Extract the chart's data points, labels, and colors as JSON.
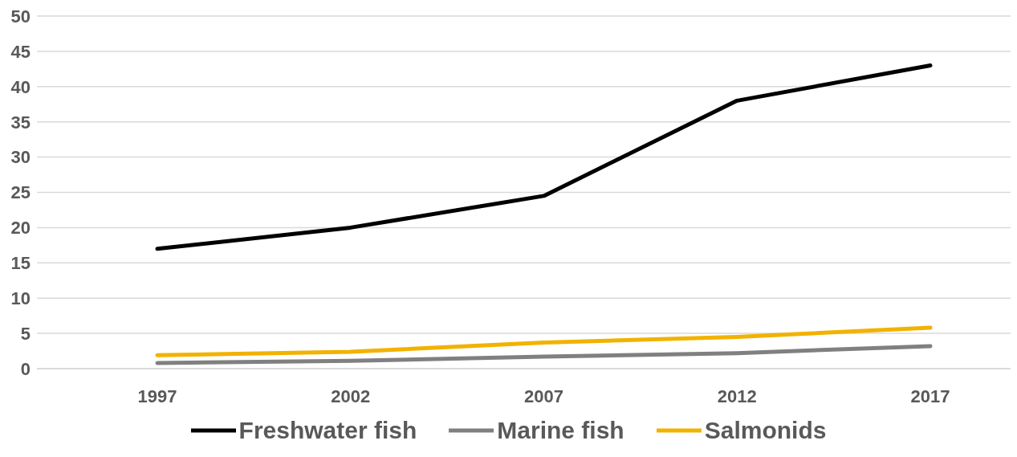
{
  "chart_data": {
    "type": "line",
    "categories": [
      "1997",
      "2002",
      "2007",
      "2012",
      "2017"
    ],
    "series": [
      {
        "name": "Freshwater fish",
        "color": "#000000",
        "values": [
          17,
          20,
          24.5,
          38,
          43
        ]
      },
      {
        "name": "Marine fish",
        "color": "#808080",
        "values": [
          0.8,
          1.1,
          1.7,
          2.2,
          3.2
        ]
      },
      {
        "name": "Salmonids",
        "color": "#f2b200",
        "values": [
          1.9,
          2.4,
          3.7,
          4.5,
          5.8
        ]
      }
    ],
    "ylim": [
      0,
      50
    ],
    "yticks": [
      0,
      5,
      10,
      15,
      20,
      25,
      30,
      35,
      40,
      45,
      50
    ],
    "grid": "y",
    "legend": "bottom",
    "marker": "none",
    "line_style": "solid"
  }
}
